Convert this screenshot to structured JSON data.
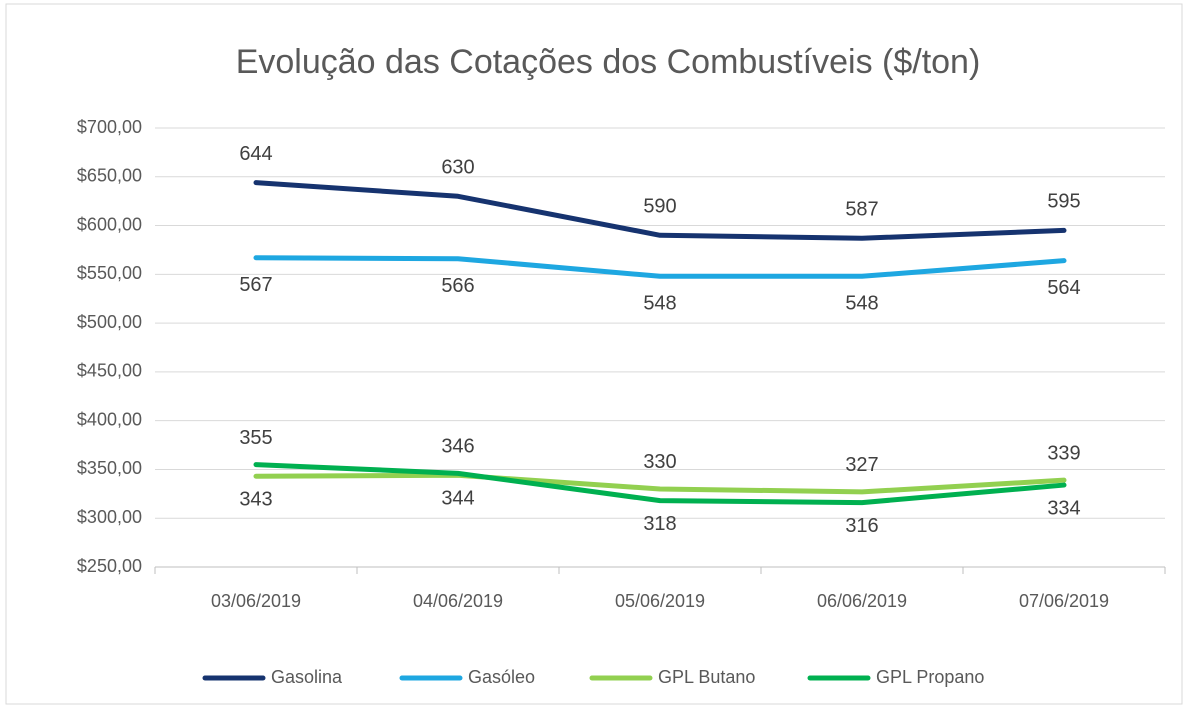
{
  "chart_data": {
    "type": "line",
    "title": "Evolução das Cotações dos Combustíveis ($/ton)",
    "categories": [
      "03/06/2019",
      "04/06/2019",
      "05/06/2019",
      "06/06/2019",
      "07/06/2019"
    ],
    "series": [
      {
        "name": "Gasolina",
        "color": "#16336f",
        "values": [
          644,
          630,
          590,
          587,
          595
        ]
      },
      {
        "name": "Gasóleo",
        "color": "#1ea7e1",
        "values": [
          567,
          566,
          548,
          548,
          564
        ]
      },
      {
        "name": "GPL Butano",
        "color": "#92d050",
        "values": [
          343,
          344,
          330,
          327,
          339
        ]
      },
      {
        "name": "GPL Propano",
        "color": "#00b050",
        "values": [
          355,
          346,
          318,
          316,
          334
        ]
      }
    ],
    "ylim": [
      250,
      700
    ],
    "yticks": [
      {
        "value": 250,
        "label": "$250,00"
      },
      {
        "value": 300,
        "label": "$300,00"
      },
      {
        "value": 350,
        "label": "$350,00"
      },
      {
        "value": 400,
        "label": "$400,00"
      },
      {
        "value": 450,
        "label": "$450,00"
      },
      {
        "value": 500,
        "label": "$500,00"
      },
      {
        "value": 550,
        "label": "$550,00"
      },
      {
        "value": 600,
        "label": "$600,00"
      },
      {
        "value": 650,
        "label": "$650,00"
      },
      {
        "value": 700,
        "label": "$700,00"
      }
    ],
    "grid": true,
    "legend": "bottom"
  }
}
